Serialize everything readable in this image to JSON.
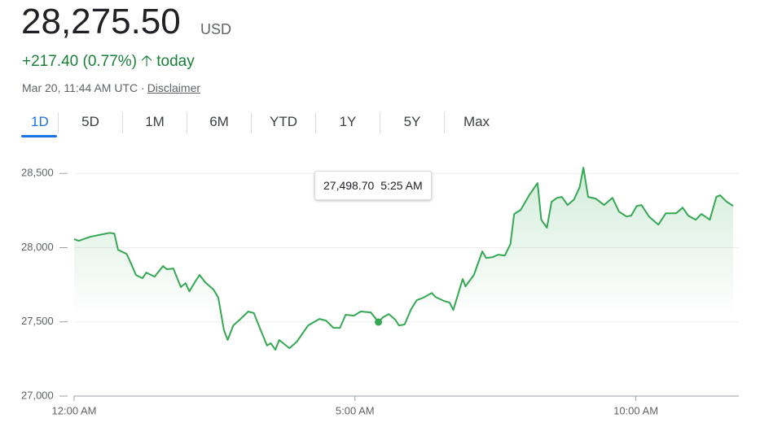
{
  "header": {
    "price": "28,275.50",
    "currency": "USD",
    "change": "+217.40 (0.77%)",
    "period": "today",
    "timestamp": "Mar 20, 11:44 AM UTC ·",
    "disclaimer": "Disclaimer"
  },
  "tabs": [
    "1D",
    "5D",
    "1M",
    "6M",
    "YTD",
    "1Y",
    "5Y",
    "Max"
  ],
  "active_tab": 0,
  "tooltip": {
    "value": "27,498.70",
    "time": "5:25 AM",
    "index": 46
  },
  "chart_data": {
    "type": "line",
    "color": "#34a853",
    "area": true,
    "grid": true,
    "x": [
      0,
      5,
      17,
      30,
      38,
      43,
      47,
      56,
      60,
      66,
      73,
      77,
      86,
      95,
      99,
      106,
      114,
      119,
      123,
      130,
      134,
      140,
      149,
      154,
      160,
      164,
      170,
      177,
      186,
      192,
      199,
      206,
      210,
      215,
      219,
      230,
      238,
      250,
      262,
      269,
      277,
      284,
      290,
      299,
      306,
      317,
      325,
      330,
      336,
      343,
      347,
      353,
      360,
      366,
      373,
      382,
      386,
      395,
      401,
      405,
      415,
      418,
      427,
      436,
      440,
      447,
      453,
      460,
      466,
      470,
      477,
      486,
      495,
      499,
      505,
      510,
      516,
      521,
      527,
      534,
      540,
      544,
      549,
      557,
      566,
      575,
      582,
      590,
      595,
      601,
      606,
      614,
      624,
      632,
      643,
      650,
      656,
      664,
      670,
      679,
      686,
      690,
      697,
      704
    ],
    "values": [
      28057,
      28046,
      28073,
      28090,
      28100,
      28095,
      27985,
      27958,
      27904,
      27816,
      27794,
      27832,
      27805,
      27876,
      27854,
      27860,
      27734,
      27761,
      27706,
      27778,
      27816,
      27767,
      27717,
      27663,
      27444,
      27378,
      27476,
      27515,
      27570,
      27559,
      27449,
      27340,
      27356,
      27312,
      27378,
      27323,
      27367,
      27476,
      27520,
      27509,
      27460,
      27460,
      27548,
      27542,
      27570,
      27564,
      27498.7,
      27531,
      27553,
      27515,
      27476,
      27482,
      27586,
      27646,
      27663,
      27695,
      27668,
      27641,
      27630,
      27580,
      27789,
      27739,
      27816,
      27975,
      27931,
      27936,
      27953,
      27947,
      28024,
      28227,
      28254,
      28353,
      28435,
      28188,
      28134,
      28309,
      28336,
      28342,
      28287,
      28325,
      28407,
      28539,
      28342,
      28331,
      28287,
      28336,
      28243,
      28210,
      28216,
      28281,
      28287,
      28210,
      28155,
      28232,
      28232,
      28270,
      28216,
      28188,
      28227,
      28188,
      28342,
      28353,
      28309,
      28281
    ],
    "xlim": [
      0,
      710
    ],
    "xticks": [
      {
        "value": 0,
        "label": "12:00 AM"
      },
      {
        "value": 300,
        "label": "5:00 AM"
      },
      {
        "value": 600,
        "label": "10:00 AM"
      }
    ],
    "ylim": [
      27000,
      28600
    ],
    "yticks": [
      {
        "value": 27000,
        "label": "27,000"
      },
      {
        "value": 27500,
        "label": "27,500"
      },
      {
        "value": 28000,
        "label": "28,000"
      },
      {
        "value": 28500,
        "label": "28,500"
      }
    ]
  }
}
